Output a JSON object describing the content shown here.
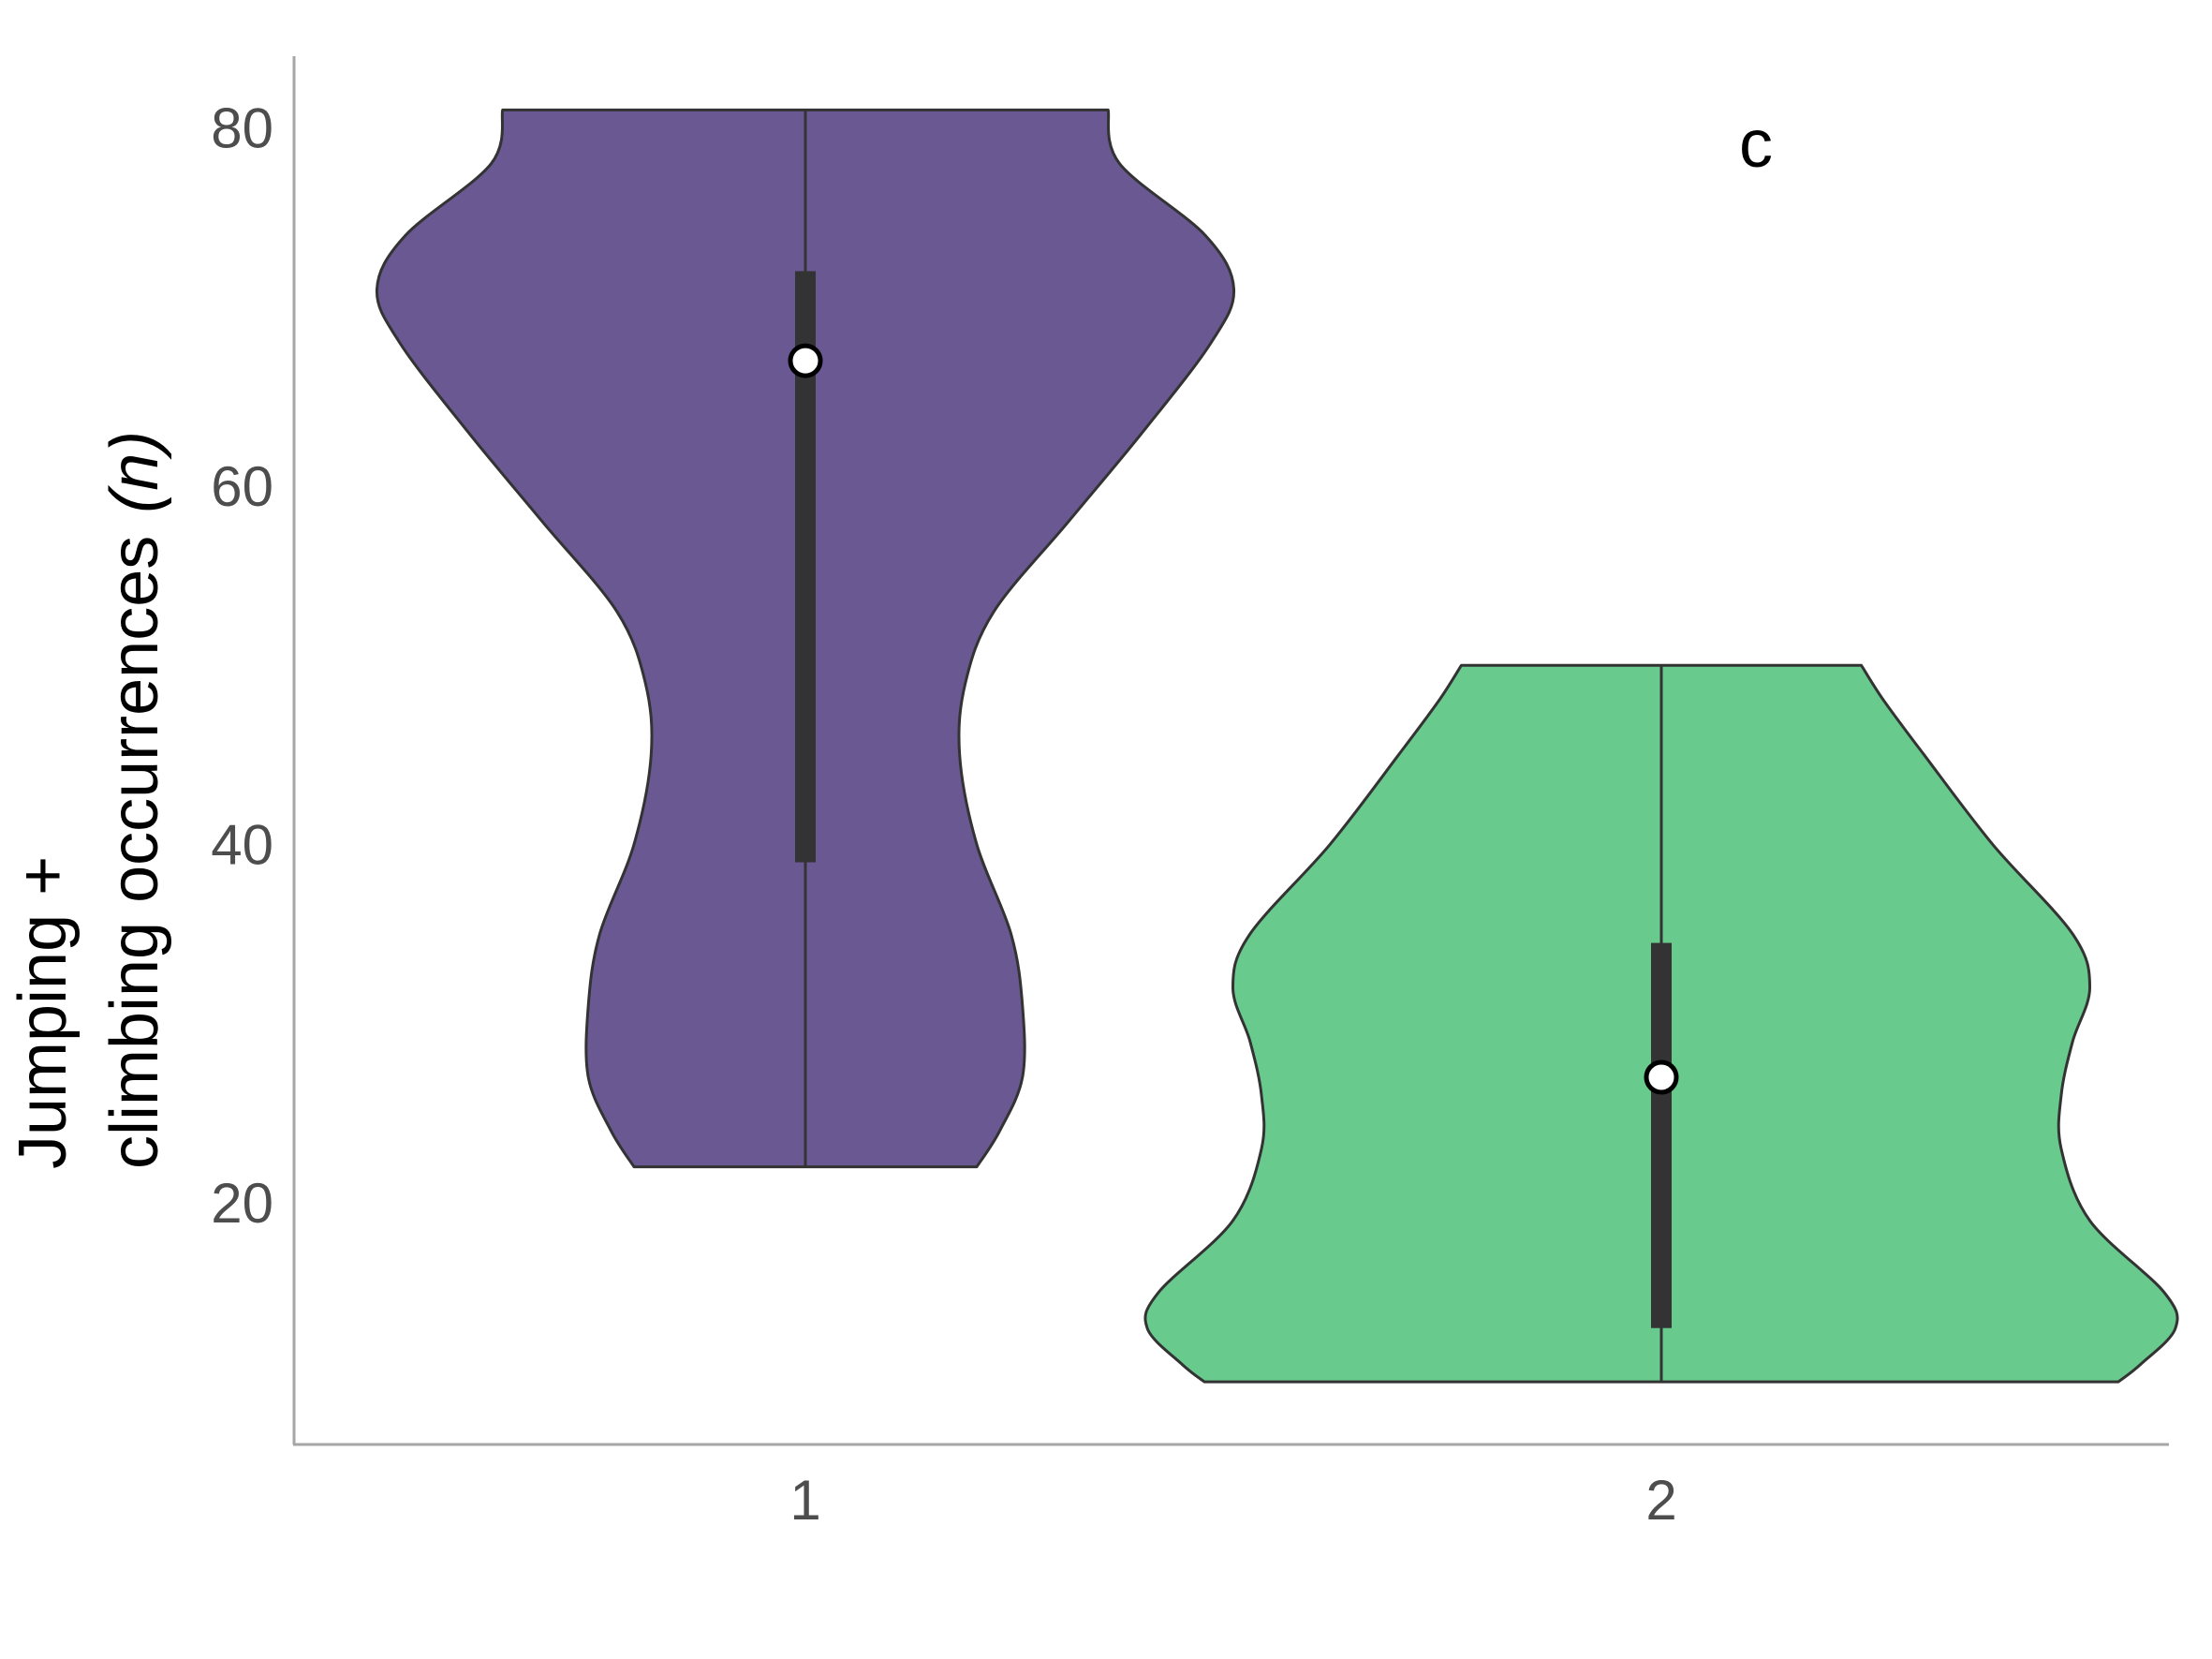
{
  "chart_data": {
    "type": "violin",
    "panel_label": "c",
    "ylabel": {
      "line1": "Jumping +",
      "line2_main": "climbing occurrences",
      "line2_italic": "(n)"
    },
    "xlabel": "",
    "ylim": [
      6.5,
      84
    ],
    "yticks": [
      20,
      40,
      60,
      80
    ],
    "categories": [
      "1",
      "2"
    ],
    "grid": false,
    "legend": "none",
    "outline_color": "#333333",
    "series": [
      {
        "category": "1",
        "color": "#6A5892",
        "min": 22,
        "max": 81,
        "q1": 39,
        "q3": 72,
        "median": 67,
        "density": [
          [
            22,
            0.3
          ],
          [
            24,
            0.34
          ],
          [
            27,
            0.38
          ],
          [
            31,
            0.38
          ],
          [
            35,
            0.36
          ],
          [
            40,
            0.3
          ],
          [
            45,
            0.27
          ],
          [
            49,
            0.28
          ],
          [
            53,
            0.33
          ],
          [
            58,
            0.46
          ],
          [
            63,
            0.59
          ],
          [
            68,
            0.71
          ],
          [
            71,
            0.75
          ],
          [
            74,
            0.7
          ],
          [
            78,
            0.55
          ],
          [
            81,
            0.53
          ]
        ]
      },
      {
        "category": "2",
        "color": "#69CA8E",
        "min": 10,
        "max": 50,
        "q1": 13,
        "q3": 34.5,
        "median": 27,
        "density": [
          [
            10,
            0.8
          ],
          [
            11,
            0.84
          ],
          [
            13,
            0.9
          ],
          [
            15,
            0.88
          ],
          [
            19,
            0.75
          ],
          [
            23,
            0.7
          ],
          [
            26,
            0.7
          ],
          [
            29,
            0.72
          ],
          [
            32,
            0.75
          ],
          [
            35,
            0.72
          ],
          [
            40,
            0.58
          ],
          [
            45,
            0.46
          ],
          [
            48,
            0.39
          ],
          [
            50,
            0.35
          ]
        ]
      }
    ]
  }
}
